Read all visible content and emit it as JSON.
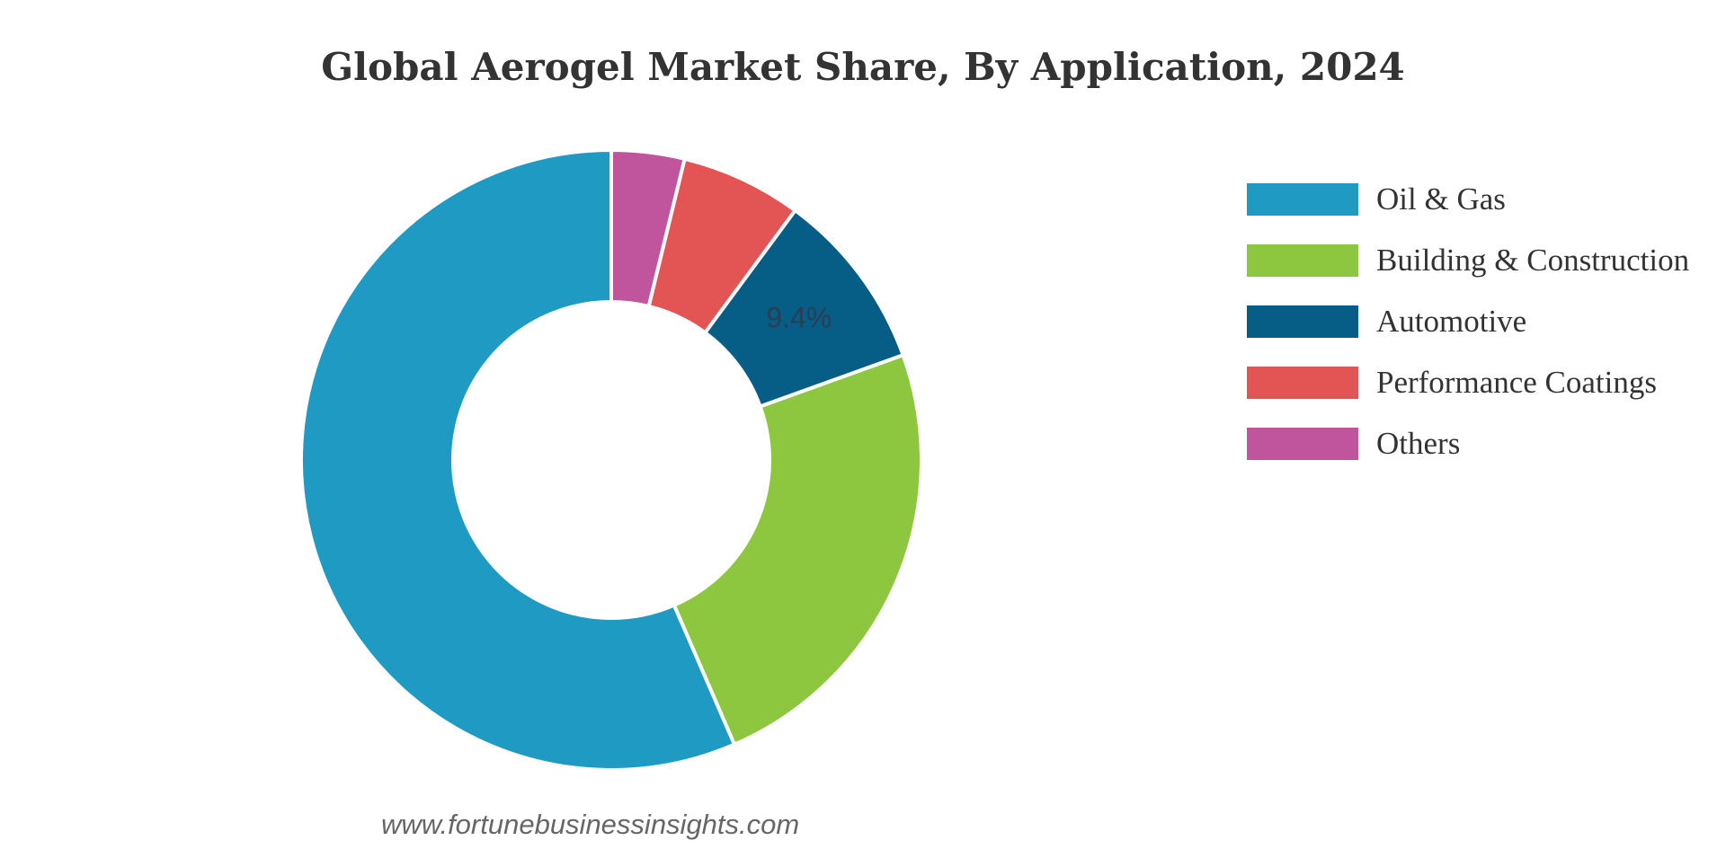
{
  "chart_data": {
    "type": "pie",
    "title": "Global Aerogel Market Share, By Application, 2024",
    "categories": [
      "Oil & Gas",
      "Building & Construction",
      "Automotive",
      "Performance Coatings",
      "Others"
    ],
    "values": [
      56.5,
      24.0,
      9.4,
      6.3,
      3.8
    ],
    "units": "%",
    "data_labels": [
      null,
      null,
      "9.4%",
      null,
      null
    ],
    "colors": [
      "#1e9ac3",
      "#8dc63f",
      "#065d86",
      "#e35454",
      "#c0559e"
    ],
    "donut": true,
    "legend_position": "right"
  },
  "watermark": "www.fortunebusinessinsights.com"
}
